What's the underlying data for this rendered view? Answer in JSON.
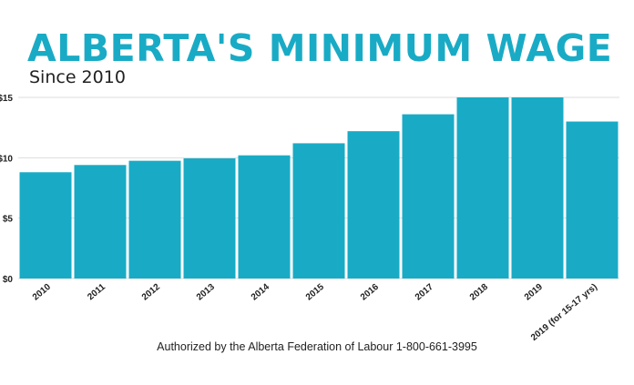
{
  "header": {
    "title": "ALBERTA'S MINIMUM WAGE",
    "subtitle": "Since 2010"
  },
  "footer": {
    "text": "Authorized by the Alberta Federation of Labour 1-800-661-3995"
  },
  "colors": {
    "bar": "#19abc5",
    "title": "#19abc5",
    "grid": "#dddddd"
  },
  "chart_data": {
    "type": "bar",
    "title": "",
    "xlabel": "",
    "ylabel": "",
    "categories": [
      "2010",
      "2011",
      "2012",
      "2013",
      "2014",
      "2015",
      "2016",
      "2017",
      "2018",
      "2019",
      "2019  (for 15-17 yrs)"
    ],
    "values": [
      8.8,
      9.4,
      9.75,
      9.95,
      10.2,
      11.2,
      12.2,
      13.6,
      15,
      15,
      13
    ],
    "ylim": [
      0,
      15
    ],
    "yticks": [
      0,
      5,
      10,
      15
    ],
    "ytick_labels": [
      "$0",
      "$5",
      "$10",
      "$15"
    ],
    "grid": true,
    "legend": "none"
  }
}
